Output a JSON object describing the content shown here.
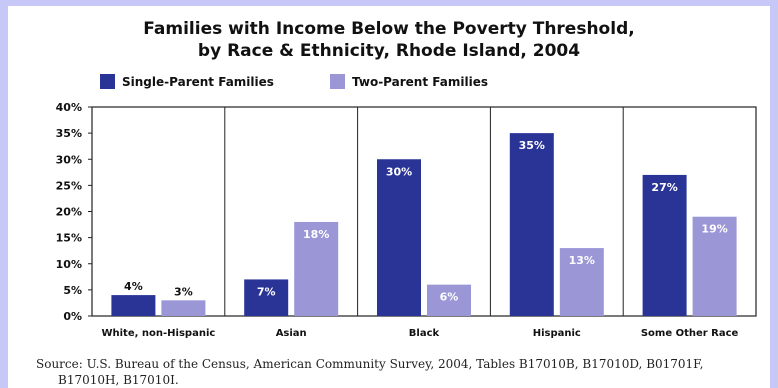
{
  "chart_data": {
    "type": "bar",
    "title_line1": "Families with Income Below the Poverty Threshold,",
    "title_line2": "by Race & Ethnicity, Rhode Island, 2004",
    "categories": [
      "White, non-Hispanic",
      "Asian",
      "Black",
      "Hispanic",
      "Some Other Race"
    ],
    "series": [
      {
        "name": "Single-Parent Families",
        "values": [
          4,
          7,
          30,
          35,
          27
        ],
        "labels": [
          "4%",
          "7%",
          "30%",
          "35%",
          "27%"
        ],
        "color": "#2a3496",
        "label_color": "#ffffff"
      },
      {
        "name": "Two-Parent Families",
        "values": [
          3,
          18,
          6,
          13,
          19
        ],
        "labels": [
          "3%",
          "18%",
          "6%",
          "13%",
          "19%"
        ],
        "color": "#9b97d6",
        "label_color": "#ffffff"
      }
    ],
    "yticks": [
      "0%",
      "5%",
      "10%",
      "15%",
      "20%",
      "25%",
      "30%",
      "35%",
      "40%"
    ],
    "ylim": [
      0,
      40
    ],
    "grid": false,
    "legend": "top-left",
    "source_line1": "Source: U.S. Bureau of the Census, American Community Survey, 2004, Tables B17010B, B17010D, B01701F,",
    "source_line2": "B17010H, B17010I."
  }
}
